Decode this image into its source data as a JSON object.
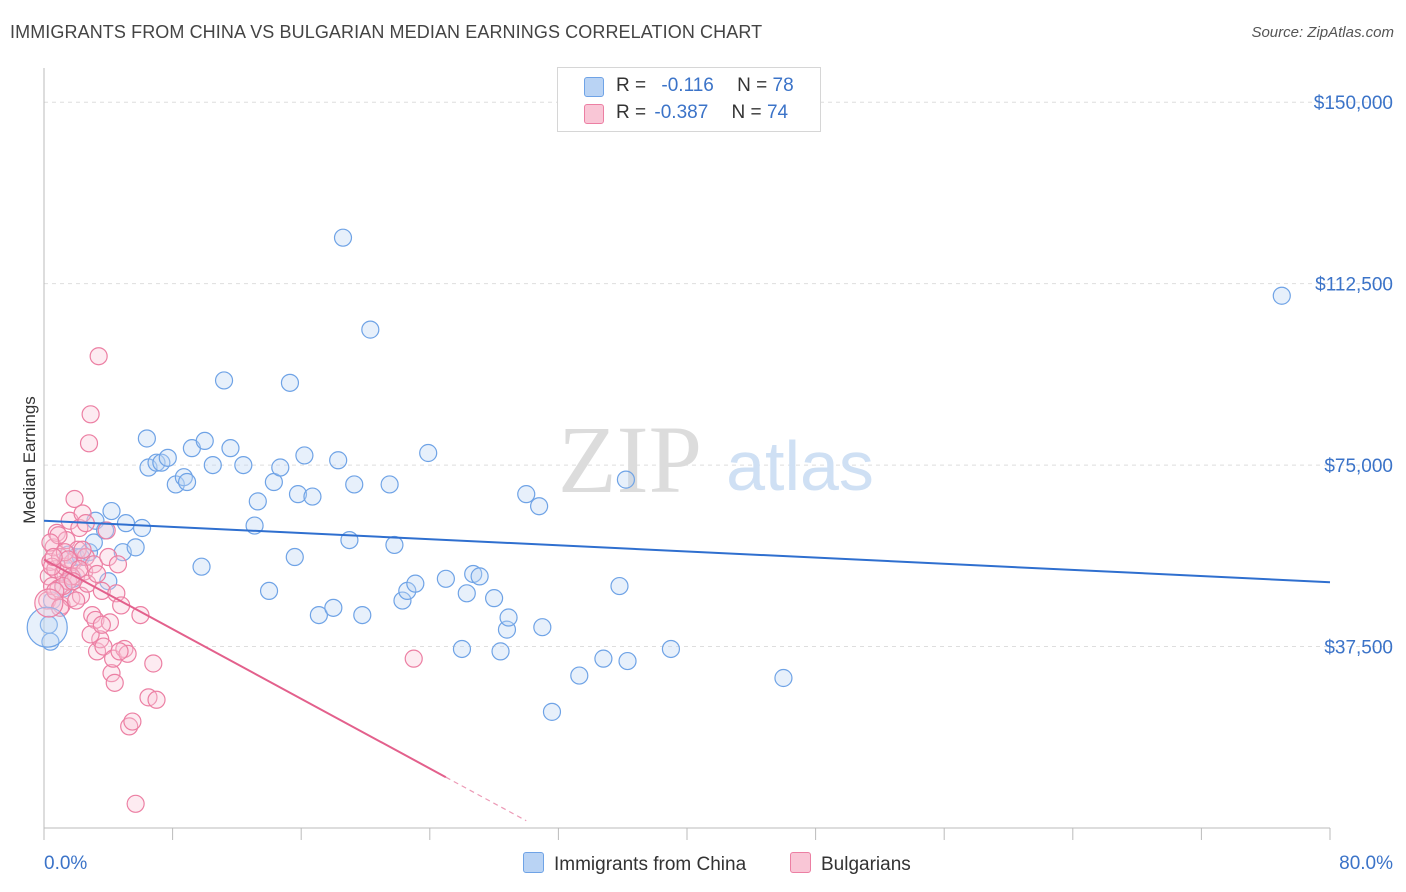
{
  "title": "IMMIGRANTS FROM CHINA VS BULGARIAN MEDIAN EARNINGS CORRELATION CHART",
  "source": "Source: ZipAtlas.com",
  "watermark": {
    "zip": "ZIP",
    "atlas": "atlas"
  },
  "legend": {
    "r_label": "R =",
    "n_label": "N =",
    "series": [
      {
        "name": "Immigrants from China",
        "r": "-0.116",
        "n": "78",
        "color": "#6fa3e6",
        "fill": "#b9d3f4"
      },
      {
        "name": "Bulgarians",
        "r": "-0.387",
        "n": "74",
        "color": "#ec7fa3",
        "fill": "#f9c6d6"
      }
    ]
  },
  "chart_data": {
    "type": "scatter",
    "title": "IMMIGRANTS FROM CHINA VS BULGARIAN MEDIAN EARNINGS CORRELATION CHART",
    "xlabel": "",
    "ylabel": "Median Earnings",
    "xlim": [
      0,
      80
    ],
    "ylim": [
      0,
      155000
    ],
    "x_tick_labels": [
      "0.0%",
      "80.0%"
    ],
    "y_ticks": [
      37500,
      75000,
      112500,
      150000
    ],
    "y_tick_labels": [
      "$37,500",
      "$75,000",
      "$112,500",
      "$150,000"
    ],
    "grid": true,
    "legend_position": "top-center",
    "series": [
      {
        "name": "Immigrants from China",
        "color": "#3b73c8",
        "trend": {
          "x": [
            0,
            80
          ],
          "y": [
            63500,
            50800
          ]
        },
        "points": [
          [
            0.3,
            42000
          ],
          [
            0.5,
            47000
          ],
          [
            1.2,
            49500
          ],
          [
            1.8,
            51500
          ],
          [
            1.5,
            56500
          ],
          [
            2.0,
            56000
          ],
          [
            2.3,
            56000
          ],
          [
            2.8,
            57000
          ],
          [
            3.1,
            59000
          ],
          [
            3.2,
            63500
          ],
          [
            3.8,
            61500
          ],
          [
            4.2,
            65500
          ],
          [
            4.0,
            51000
          ],
          [
            4.9,
            57000
          ],
          [
            5.1,
            63000
          ],
          [
            5.7,
            58000
          ],
          [
            6.1,
            62000
          ],
          [
            6.4,
            80500
          ],
          [
            6.5,
            74500
          ],
          [
            7.0,
            75500
          ],
          [
            7.3,
            75500
          ],
          [
            7.7,
            76500
          ],
          [
            8.2,
            71000
          ],
          [
            8.7,
            72500
          ],
          [
            8.9,
            71500
          ],
          [
            9.2,
            78500
          ],
          [
            10.0,
            80000
          ],
          [
            9.8,
            54000
          ],
          [
            10.5,
            75000
          ],
          [
            11.2,
            92500
          ],
          [
            11.6,
            78500
          ],
          [
            12.4,
            75000
          ],
          [
            13.1,
            62500
          ],
          [
            13.3,
            67500
          ],
          [
            14.0,
            49000
          ],
          [
            14.3,
            71500
          ],
          [
            14.7,
            74500
          ],
          [
            15.3,
            92000
          ],
          [
            15.6,
            56000
          ],
          [
            15.8,
            69000
          ],
          [
            16.2,
            77000
          ],
          [
            16.7,
            68500
          ],
          [
            17.1,
            44000
          ],
          [
            18.0,
            45500
          ],
          [
            18.3,
            76000
          ],
          [
            18.6,
            122000
          ],
          [
            19.0,
            59500
          ],
          [
            19.3,
            71000
          ],
          [
            19.8,
            44000
          ],
          [
            20.3,
            103000
          ],
          [
            21.5,
            71000
          ],
          [
            21.8,
            58500
          ],
          [
            22.3,
            47000
          ],
          [
            22.6,
            49000
          ],
          [
            23.1,
            50500
          ],
          [
            23.9,
            77500
          ],
          [
            25.0,
            51500
          ],
          [
            26.0,
            37000
          ],
          [
            26.3,
            48500
          ],
          [
            26.7,
            52500
          ],
          [
            27.1,
            52000
          ],
          [
            28.0,
            47500
          ],
          [
            28.4,
            36500
          ],
          [
            28.8,
            41000
          ],
          [
            28.9,
            43500
          ],
          [
            30.0,
            69000
          ],
          [
            30.8,
            66500
          ],
          [
            31.0,
            41500
          ],
          [
            31.6,
            24000
          ],
          [
            33.3,
            31500
          ],
          [
            34.8,
            35000
          ],
          [
            35.8,
            50000
          ],
          [
            36.2,
            72000
          ],
          [
            36.3,
            34500
          ],
          [
            39.0,
            37000
          ],
          [
            46.0,
            31000
          ],
          [
            77.0,
            110000
          ],
          [
            0.4,
            38500
          ]
        ]
      },
      {
        "name": "Bulgarians",
        "color": "#e3608c",
        "trend": {
          "x": [
            0,
            25
          ],
          "y": [
            55500,
            10500
          ]
        },
        "trend_extension": {
          "x": [
            25,
            30
          ],
          "y": [
            10500,
            1500
          ]
        },
        "points": [
          [
            0.2,
            47000
          ],
          [
            0.3,
            52000
          ],
          [
            0.4,
            55000
          ],
          [
            0.5,
            50000
          ],
          [
            0.6,
            58000
          ],
          [
            0.7,
            53500
          ],
          [
            0.8,
            61000
          ],
          [
            0.9,
            49500
          ],
          [
            1.0,
            56000
          ],
          [
            1.1,
            46000
          ],
          [
            1.2,
            52500
          ],
          [
            1.3,
            54000
          ],
          [
            1.4,
            59500
          ],
          [
            1.5,
            51000
          ],
          [
            1.6,
            63500
          ],
          [
            1.7,
            47500
          ],
          [
            1.8,
            55000
          ],
          [
            1.9,
            68000
          ],
          [
            2.0,
            52000
          ],
          [
            2.1,
            57500
          ],
          [
            2.2,
            62000
          ],
          [
            2.3,
            48000
          ],
          [
            2.4,
            65000
          ],
          [
            2.5,
            53000
          ],
          [
            2.6,
            56000
          ],
          [
            2.7,
            50500
          ],
          [
            2.8,
            79500
          ],
          [
            2.9,
            85500
          ],
          [
            3.0,
            44000
          ],
          [
            3.1,
            54500
          ],
          [
            3.2,
            43000
          ],
          [
            3.3,
            36500
          ],
          [
            3.5,
            39000
          ],
          [
            3.6,
            49000
          ],
          [
            3.7,
            37500
          ],
          [
            3.9,
            61500
          ],
          [
            4.0,
            56000
          ],
          [
            4.1,
            42500
          ],
          [
            4.2,
            32000
          ],
          [
            4.3,
            35000
          ],
          [
            4.4,
            30000
          ],
          [
            4.5,
            48500
          ],
          [
            4.6,
            54500
          ],
          [
            4.8,
            46000
          ],
          [
            5.0,
            37000
          ],
          [
            5.2,
            36000
          ],
          [
            5.3,
            21000
          ],
          [
            5.5,
            22000
          ],
          [
            5.7,
            5000
          ],
          [
            6.0,
            44000
          ],
          [
            6.5,
            27000
          ],
          [
            6.8,
            34000
          ],
          [
            7.0,
            26500
          ],
          [
            3.4,
            97500
          ],
          [
            23.0,
            35000
          ],
          [
            1.0,
            45500
          ],
          [
            0.9,
            60500
          ],
          [
            1.3,
            57000
          ],
          [
            2.0,
            47000
          ],
          [
            2.4,
            57500
          ],
          [
            1.7,
            52000
          ],
          [
            0.5,
            54000
          ],
          [
            1.2,
            50000
          ],
          [
            2.6,
            63000
          ],
          [
            3.3,
            52500
          ],
          [
            0.7,
            49000
          ],
          [
            1.5,
            55500
          ],
          [
            2.2,
            53500
          ],
          [
            0.4,
            59000
          ],
          [
            1.8,
            51000
          ],
          [
            2.9,
            40000
          ],
          [
            3.6,
            42000
          ],
          [
            4.7,
            36500
          ],
          [
            0.6,
            56000
          ]
        ]
      }
    ]
  }
}
